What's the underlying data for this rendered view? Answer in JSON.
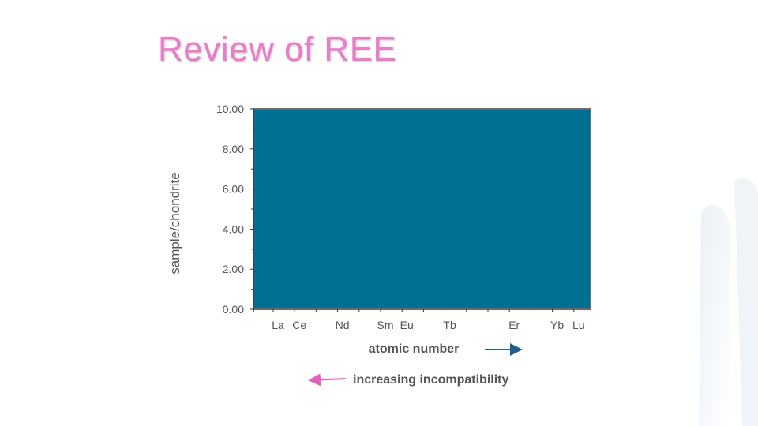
{
  "slide": {
    "title": "Review of REE"
  },
  "colors": {
    "title": "#e87dc8",
    "plot_fill": "#006f94",
    "arrow_blue": "#1f5f8b",
    "arrow_pink": "#e062c0"
  },
  "chart_data": {
    "type": "line",
    "title": "",
    "ylabel": "sample/chondrite",
    "xlabel": "atomic number",
    "ylim": [
      0,
      10
    ],
    "yticks": [
      "10.00",
      "8.00",
      "6.00",
      "4.00",
      "2.00",
      "0.00"
    ],
    "categories": [
      "La",
      "Ce",
      "Nd",
      "Sm",
      "Eu",
      "Tb",
      "Er",
      "Yb",
      "Lu"
    ],
    "series": [],
    "grid": false
  },
  "annotations": {
    "incompatibility": "increasing incompatibility"
  }
}
